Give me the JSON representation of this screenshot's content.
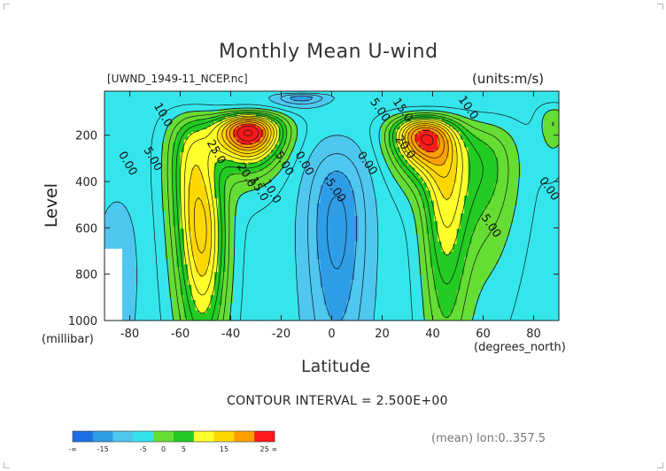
{
  "chart_data": {
    "type": "heatmap",
    "subtype": "filled-contour",
    "title": "Monthly Mean U-wind",
    "file_label": "[UWND_1949-11_NCEP.nc]",
    "units_label": "(units:m/s)",
    "xlabel": "Latitude",
    "ylabel": "Level",
    "x_units": "(degrees_north)",
    "y_units": "(millibar)",
    "xlim": [
      -90,
      90
    ],
    "ylim": [
      1000,
      10
    ],
    "x_ticks": [
      -80,
      -60,
      -40,
      -20,
      0,
      20,
      40,
      60,
      80
    ],
    "y_ticks": [
      200,
      400,
      600,
      800,
      1000
    ],
    "contour_interval_text": "CONTOUR INTERVAL = 2.500E+00",
    "averaging_note": "(mean) lon:0..357.5",
    "colorbar": {
      "tick_labels": [
        "-∞",
        "-15",
        "-5",
        "0",
        "5",
        "15",
        "25",
        "∞"
      ],
      "bin_edges": [
        -20,
        -15,
        -10,
        -5,
        0,
        5,
        10,
        15,
        20,
        25,
        30
      ],
      "colors": [
        "#1e6fe6",
        "#2f9de8",
        "#4fc7f0",
        "#34e6ec",
        "#66dd33",
        "#22cc22",
        "#ffff2a",
        "#ffd700",
        "#ff9f00",
        "#ff1a1a"
      ]
    },
    "features": [
      {
        "type": "jet_max",
        "lat": -32,
        "level": 190,
        "value": 32
      },
      {
        "type": "jet_max",
        "lat": 36,
        "level": 210,
        "value": 27
      },
      {
        "type": "easterly_min",
        "lat": 0,
        "level": 550,
        "value": -8
      },
      {
        "type": "easterly_min",
        "lat": -10,
        "level": 50,
        "value": -8
      }
    ],
    "contour_labels": [
      {
        "text": "10.0",
        "lat": -68,
        "level": 120
      },
      {
        "text": "0.00",
        "lat": -82,
        "level": 330
      },
      {
        "text": "5.00",
        "lat": -72,
        "level": 310
      },
      {
        "text": "25.0",
        "lat": -47,
        "level": 280
      },
      {
        "text": "20.0",
        "lat": -35,
        "level": 380
      },
      {
        "text": "15.0",
        "lat": -30,
        "level": 440
      },
      {
        "text": "10.0",
        "lat": -25,
        "level": 450
      },
      {
        "text": "5.00",
        "lat": -20,
        "level": 330
      },
      {
        "text": "0.00",
        "lat": -12,
        "level": 330
      },
      {
        "text": "-5.00",
        "lat": 0,
        "level": 440
      },
      {
        "text": "0.00",
        "lat": 13,
        "level": 330
      },
      {
        "text": "5.00",
        "lat": 18,
        "level": 100
      },
      {
        "text": "15.0",
        "lat": 27,
        "level": 100
      },
      {
        "text": "20.0",
        "lat": 28,
        "level": 260
      },
      {
        "text": "10.0",
        "lat": 53,
        "level": 90
      },
      {
        "text": "5.00",
        "lat": 62,
        "level": 600
      },
      {
        "text": "0.00",
        "lat": 85,
        "level": 440
      }
    ]
  }
}
